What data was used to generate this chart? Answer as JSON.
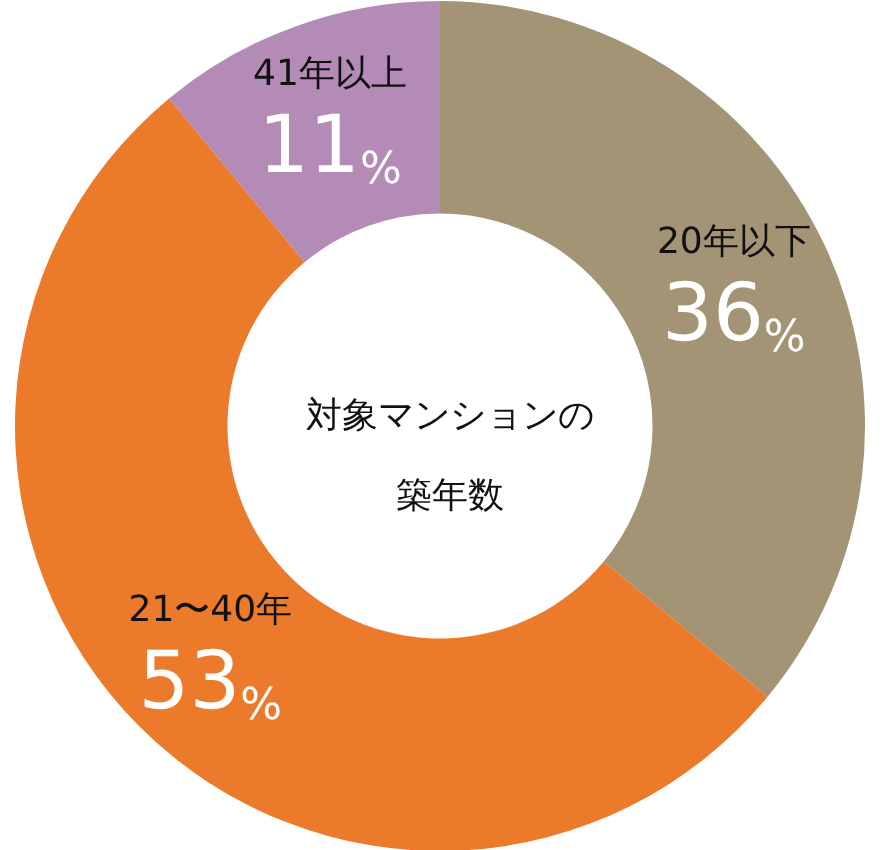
{
  "chart_data": {
    "type": "donut",
    "title": "対象マンションの築年数",
    "categories": [
      "20年以下",
      "21〜40年",
      "41年以上"
    ],
    "values": [
      36,
      53,
      11
    ],
    "colors": [
      "#a39476",
      "#ec7a2b",
      "#b48ab7"
    ],
    "value_labels": [
      "36%",
      "53%",
      "11%"
    ],
    "legend": false
  }
}
